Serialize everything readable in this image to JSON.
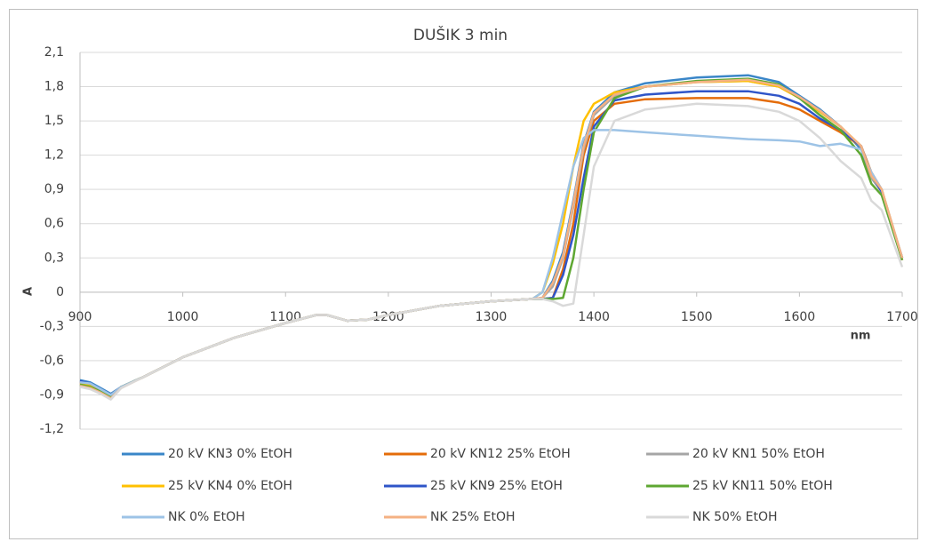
{
  "chart_data": {
    "type": "line",
    "title": "DUŠIK 3 min",
    "x_label": "nm",
    "y_label": "A",
    "x": [
      900,
      910,
      920,
      930,
      940,
      960,
      1000,
      1050,
      1100,
      1130,
      1140,
      1160,
      1180,
      1200,
      1250,
      1300,
      1340,
      1350,
      1360,
      1370,
      1380,
      1390,
      1400,
      1420,
      1450,
      1500,
      1550,
      1580,
      1600,
      1620,
      1640,
      1660,
      1670,
      1680,
      1700
    ],
    "xlim": [
      900,
      1700
    ],
    "xticks": [
      900,
      1000,
      1100,
      1200,
      1300,
      1400,
      1500,
      1600,
      1700
    ],
    "ylim": [
      -1.2,
      2.1
    ],
    "yticks": [
      {
        "value": -1.2,
        "label": "-1,2"
      },
      {
        "value": -0.9,
        "label": "-0,9"
      },
      {
        "value": -0.6,
        "label": "-0,6"
      },
      {
        "value": -0.3,
        "label": "-0,3"
      },
      0,
      {
        "value": 0.3,
        "label": "0,3"
      },
      {
        "value": 0.6,
        "label": "0,6"
      },
      {
        "value": 0.9,
        "label": "0,9"
      },
      {
        "value": 1.2,
        "label": "1,2"
      },
      {
        "value": 1.5,
        "label": "1,5"
      },
      {
        "value": 1.8,
        "label": "1,8"
      },
      {
        "value": 2.1,
        "label": "2,1"
      }
    ],
    "grid": true,
    "legend": "bottom",
    "series": [
      {
        "name": "20 kV KN3 0% EtOH",
        "color": "#3a86c8",
        "values": [
          -0.77,
          -0.79,
          -0.84,
          -0.89,
          -0.83,
          -0.75,
          -0.57,
          -0.4,
          -0.27,
          -0.2,
          -0.2,
          -0.25,
          -0.24,
          -0.2,
          -0.12,
          -0.08,
          -0.06,
          -0.05,
          0.1,
          0.35,
          0.8,
          1.3,
          1.58,
          1.75,
          1.83,
          1.88,
          1.9,
          1.84,
          1.72,
          1.6,
          1.45,
          1.25,
          1.0,
          0.88,
          0.3
        ]
      },
      {
        "name": "20 kV KN12 25% EtOH",
        "color": "#e46c0a",
        "values": [
          -0.79,
          -0.81,
          -0.86,
          -0.9,
          -0.83,
          -0.75,
          -0.57,
          -0.4,
          -0.27,
          -0.2,
          -0.2,
          -0.25,
          -0.24,
          -0.2,
          -0.12,
          -0.08,
          -0.06,
          -0.06,
          -0.05,
          0.2,
          0.6,
          1.2,
          1.5,
          1.65,
          1.69,
          1.7,
          1.7,
          1.66,
          1.6,
          1.5,
          1.4,
          1.28,
          1.05,
          0.9,
          0.28
        ]
      },
      {
        "name": "20 kV KN1 50% EtOH",
        "color": "#a5a5a5",
        "values": [
          -0.8,
          -0.82,
          -0.86,
          -0.91,
          -0.83,
          -0.75,
          -0.57,
          -0.4,
          -0.27,
          -0.2,
          -0.2,
          -0.25,
          -0.24,
          -0.2,
          -0.12,
          -0.08,
          -0.06,
          -0.05,
          0.05,
          0.3,
          0.75,
          1.25,
          1.55,
          1.72,
          1.8,
          1.84,
          1.85,
          1.8,
          1.7,
          1.58,
          1.45,
          1.27,
          1.0,
          0.88,
          0.3
        ]
      },
      {
        "name": "25 kV KN4 0% EtOH",
        "color": "#ffc000",
        "values": [
          -0.8,
          -0.82,
          -0.87,
          -0.91,
          -0.83,
          -0.75,
          -0.57,
          -0.4,
          -0.27,
          -0.2,
          -0.2,
          -0.25,
          -0.24,
          -0.2,
          -0.12,
          -0.08,
          -0.06,
          0.0,
          0.25,
          0.6,
          1.1,
          1.5,
          1.65,
          1.75,
          1.8,
          1.84,
          1.85,
          1.8,
          1.7,
          1.58,
          1.45,
          1.28,
          1.02,
          0.9,
          0.3
        ]
      },
      {
        "name": "25 kV KN9 25% EtOH",
        "color": "#2f55c8",
        "values": [
          -0.78,
          -0.8,
          -0.85,
          -0.9,
          -0.83,
          -0.75,
          -0.57,
          -0.4,
          -0.27,
          -0.2,
          -0.2,
          -0.25,
          -0.24,
          -0.2,
          -0.12,
          -0.08,
          -0.06,
          -0.06,
          -0.05,
          0.15,
          0.5,
          1.0,
          1.45,
          1.68,
          1.73,
          1.76,
          1.76,
          1.72,
          1.65,
          1.52,
          1.42,
          1.28,
          1.03,
          0.88,
          0.3
        ]
      },
      {
        "name": "25 kV KN11 50% EtOH",
        "color": "#5ea732",
        "values": [
          -0.81,
          -0.83,
          -0.87,
          -0.92,
          -0.83,
          -0.75,
          -0.57,
          -0.4,
          -0.27,
          -0.2,
          -0.2,
          -0.25,
          -0.24,
          -0.2,
          -0.12,
          -0.08,
          -0.06,
          -0.06,
          -0.06,
          -0.05,
          0.3,
          0.9,
          1.4,
          1.7,
          1.8,
          1.85,
          1.87,
          1.82,
          1.7,
          1.55,
          1.42,
          1.2,
          0.95,
          0.85,
          0.28
        ]
      },
      {
        "name": "NK 0% EtOH",
        "color": "#9dc3e6",
        "values": [
          -0.79,
          -0.8,
          -0.85,
          -0.9,
          -0.83,
          -0.75,
          -0.57,
          -0.4,
          -0.27,
          -0.2,
          -0.2,
          -0.25,
          -0.24,
          -0.2,
          -0.12,
          -0.08,
          -0.06,
          0.0,
          0.3,
          0.7,
          1.1,
          1.35,
          1.42,
          1.42,
          1.4,
          1.37,
          1.34,
          1.33,
          1.32,
          1.28,
          1.3,
          1.25,
          1.05,
          0.9,
          0.3
        ]
      },
      {
        "name": "NK 25% EtOH",
        "color": "#f4b183",
        "values": [
          -0.82,
          -0.84,
          -0.88,
          -0.93,
          -0.84,
          -0.75,
          -0.57,
          -0.4,
          -0.27,
          -0.2,
          -0.2,
          -0.25,
          -0.24,
          -0.2,
          -0.12,
          -0.08,
          -0.06,
          -0.05,
          0.08,
          0.32,
          0.78,
          1.28,
          1.57,
          1.73,
          1.8,
          1.84,
          1.86,
          1.81,
          1.71,
          1.59,
          1.45,
          1.28,
          1.02,
          0.9,
          0.3
        ]
      },
      {
        "name": "NK 50% EtOH",
        "color": "#d9d9d9",
        "values": [
          -0.83,
          -0.85,
          -0.89,
          -0.94,
          -0.84,
          -0.75,
          -0.57,
          -0.4,
          -0.27,
          -0.2,
          -0.2,
          -0.25,
          -0.24,
          -0.2,
          -0.12,
          -0.08,
          -0.06,
          -0.06,
          -0.08,
          -0.12,
          -0.1,
          0.5,
          1.1,
          1.5,
          1.6,
          1.65,
          1.63,
          1.58,
          1.5,
          1.35,
          1.15,
          1.0,
          0.8,
          0.72,
          0.22
        ]
      }
    ]
  }
}
